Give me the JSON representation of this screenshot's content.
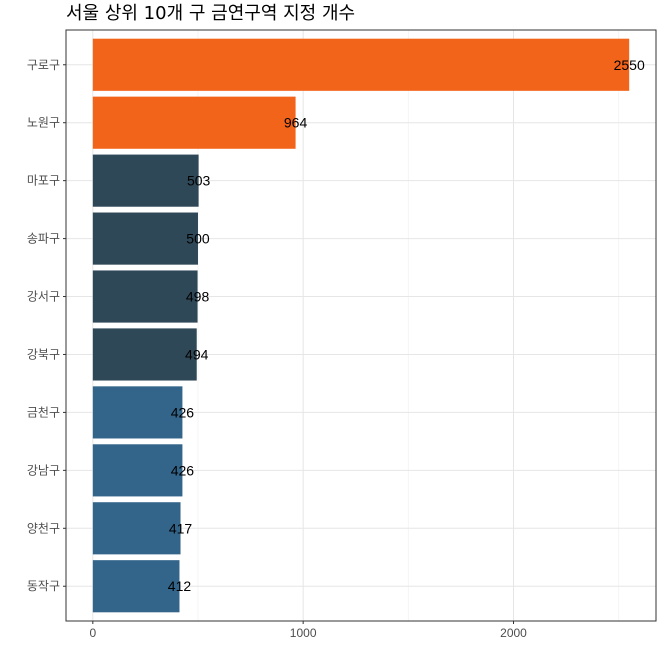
{
  "chart_data": {
    "type": "bar",
    "orientation": "horizontal",
    "title": "서울 상위 10개 구 금연구역 지정 개수",
    "xlabel": "",
    "ylabel": "",
    "categories": [
      "구로구",
      "노원구",
      "마포구",
      "송파구",
      "강서구",
      "강북구",
      "금천구",
      "강남구",
      "양천구",
      "동작구"
    ],
    "values": [
      2550,
      964,
      503,
      500,
      498,
      494,
      426,
      426,
      417,
      412
    ],
    "data_labels": [
      "2550",
      "964",
      "503",
      "500",
      "498",
      "494",
      "426",
      "426",
      "417",
      "412"
    ],
    "bar_colors": [
      "#f26419",
      "#f26419",
      "#2f4858",
      "#2f4858",
      "#2f4858",
      "#2f4858",
      "#33658a",
      "#33658a",
      "#33658a",
      "#33658a"
    ],
    "xlim": [
      -127.5,
      2677.5
    ],
    "x_ticks": [
      0,
      1000,
      2000
    ],
    "x_tick_labels": [
      "0",
      "1000",
      "2000"
    ],
    "grid": true,
    "legend": "none"
  }
}
